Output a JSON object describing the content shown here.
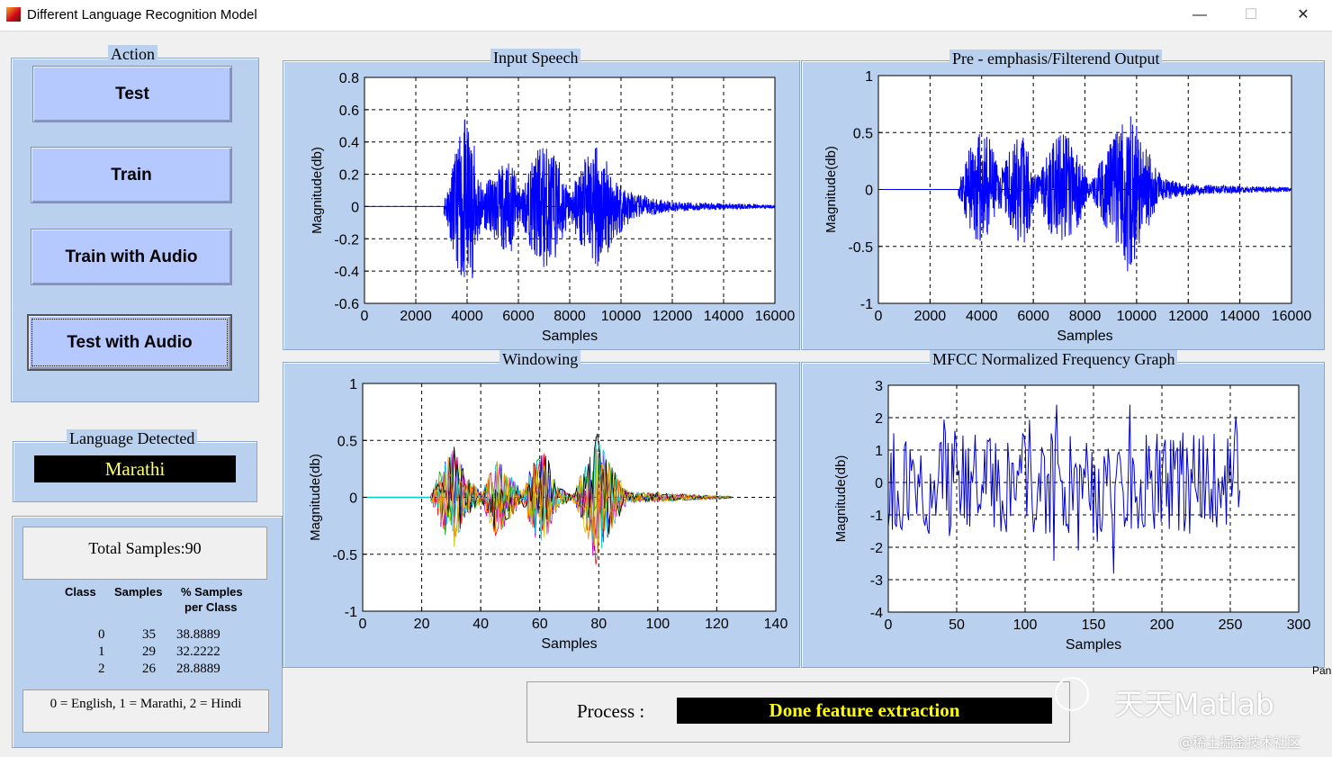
{
  "window": {
    "title": "Different Language Recognition Model",
    "minimize": "—",
    "maximize": "☐",
    "close": "✕"
  },
  "action_panel": {
    "title": "Action",
    "buttons": [
      "Test",
      "Train",
      "Train with Audio",
      "Test with Audio"
    ]
  },
  "language_panel": {
    "title": "Language Detected",
    "value": "Marathi"
  },
  "stats_panel": {
    "total": "Total Samples:90",
    "headers": [
      "Class",
      "Samples",
      "% Samples",
      "per Class"
    ],
    "rows": [
      [
        "0",
        "35",
        "38.8889"
      ],
      [
        "1",
        "29",
        "32.2222"
      ],
      [
        "2",
        "26",
        "28.8889"
      ]
    ],
    "legend": "0 = English,  1 = Marathi,  2 = Hindi"
  },
  "process": {
    "label": "Process :",
    "status": "Done feature extraction"
  },
  "overflow_text": "Pan",
  "watermark": {
    "name": "天天Matlab",
    "site": "@稀土掘金技术社区"
  },
  "colors": {
    "panel_bg": "#b9d1ef",
    "button_bg": "#b6c9ff",
    "signal": "#0000ff",
    "status_text": "#ffff66"
  },
  "chart_data": [
    {
      "type": "line",
      "title": "Input Speech",
      "xlabel": "Samples",
      "ylabel": "Magnitude(db)",
      "xlim": [
        0,
        16000
      ],
      "ylim": [
        -0.6,
        0.8
      ],
      "xticks": [
        0,
        2000,
        4000,
        6000,
        8000,
        10000,
        12000,
        14000,
        16000
      ],
      "yticks": [
        -0.6,
        -0.4,
        -0.2,
        0,
        0.2,
        0.4,
        0.6,
        0.8
      ],
      "grid": true,
      "series_color": "#0000ff",
      "signal_start": 3100,
      "signal_end": 16000,
      "envelope": [
        {
          "x": 3100,
          "amp": 0.05
        },
        {
          "x": 3500,
          "amp": 0.3
        },
        {
          "x": 3900,
          "amp": 0.55
        },
        {
          "x": 4200,
          "amp": 0.45
        },
        {
          "x": 4600,
          "amp": 0.12
        },
        {
          "x": 5300,
          "amp": 0.25
        },
        {
          "x": 5700,
          "amp": 0.3
        },
        {
          "x": 6100,
          "amp": 0.1
        },
        {
          "x": 6700,
          "amp": 0.35
        },
        {
          "x": 7000,
          "amp": 0.4
        },
        {
          "x": 7600,
          "amp": 0.3
        },
        {
          "x": 8000,
          "amp": 0.08
        },
        {
          "x": 8500,
          "amp": 0.28
        },
        {
          "x": 9100,
          "amp": 0.4
        },
        {
          "x": 9800,
          "amp": 0.2
        },
        {
          "x": 10500,
          "amp": 0.08
        },
        {
          "x": 12000,
          "amp": 0.03
        },
        {
          "x": 16000,
          "amp": 0.01
        }
      ]
    },
    {
      "type": "line",
      "title": "Pre - emphasis/Filterend Output",
      "xlabel": "Samples",
      "ylabel": "Magnitude(db)",
      "xlim": [
        0,
        16000
      ],
      "ylim": [
        -1,
        1
      ],
      "xticks": [
        0,
        2000,
        4000,
        6000,
        8000,
        10000,
        12000,
        14000,
        16000
      ],
      "yticks": [
        -1,
        -0.5,
        0,
        0.5,
        1
      ],
      "grid": true,
      "series_color": "#0000ff",
      "signal_start": 3100,
      "signal_end": 16000,
      "envelope": [
        {
          "x": 3100,
          "amp": 0.05
        },
        {
          "x": 3500,
          "amp": 0.35
        },
        {
          "x": 3900,
          "amp": 0.5
        },
        {
          "x": 4300,
          "amp": 0.45
        },
        {
          "x": 4700,
          "amp": 0.15
        },
        {
          "x": 5300,
          "amp": 0.45
        },
        {
          "x": 5700,
          "amp": 0.5
        },
        {
          "x": 6100,
          "amp": 0.1
        },
        {
          "x": 6800,
          "amp": 0.45
        },
        {
          "x": 7300,
          "amp": 0.5
        },
        {
          "x": 7800,
          "amp": 0.3
        },
        {
          "x": 8200,
          "amp": 0.05
        },
        {
          "x": 9000,
          "amp": 0.45
        },
        {
          "x": 9700,
          "amp": 0.75
        },
        {
          "x": 10300,
          "amp": 0.4
        },
        {
          "x": 11000,
          "amp": 0.1
        },
        {
          "x": 12500,
          "amp": 0.04
        },
        {
          "x": 16000,
          "amp": 0.02
        }
      ]
    },
    {
      "type": "line",
      "title": "Windowing",
      "xlabel": "Samples",
      "ylabel": "Magnitude(db)",
      "xlim": [
        0,
        140
      ],
      "ylim": [
        -1,
        1
      ],
      "xticks": [
        0,
        20,
        40,
        60,
        80,
        100,
        120,
        140
      ],
      "yticks": [
        -1,
        -0.5,
        0,
        0.5,
        1
      ],
      "grid": true,
      "signal_start": 23,
      "signal_end": 125,
      "series_colors": [
        "#0000ff",
        "#ff0000",
        "#00aa00",
        "#cc00cc",
        "#00cccc",
        "#cccc00",
        "#000000",
        "#ff8800"
      ],
      "envelope": [
        {
          "x": 23,
          "amp": 0.02
        },
        {
          "x": 27,
          "amp": 0.3
        },
        {
          "x": 31,
          "amp": 0.45
        },
        {
          "x": 35,
          "amp": 0.2
        },
        {
          "x": 40,
          "amp": 0.05
        },
        {
          "x": 45,
          "amp": 0.35
        },
        {
          "x": 50,
          "amp": 0.2
        },
        {
          "x": 54,
          "amp": 0.05
        },
        {
          "x": 58,
          "amp": 0.35
        },
        {
          "x": 62,
          "amp": 0.4
        },
        {
          "x": 66,
          "amp": 0.1
        },
        {
          "x": 71,
          "amp": 0.02
        },
        {
          "x": 76,
          "amp": 0.35
        },
        {
          "x": 79,
          "amp": 0.6
        },
        {
          "x": 84,
          "amp": 0.3
        },
        {
          "x": 90,
          "amp": 0.05
        },
        {
          "x": 125,
          "amp": 0.01
        }
      ]
    },
    {
      "type": "line",
      "title": "MFCC Normalized Frequency Graph",
      "xlabel": "Samples",
      "ylabel": "Magnitude(db)",
      "xlim": [
        0,
        300
      ],
      "ylim": [
        -4,
        3
      ],
      "xticks": [
        0,
        50,
        100,
        150,
        200,
        250,
        300
      ],
      "yticks": [
        -4,
        -3,
        -2,
        -1,
        0,
        1,
        2,
        3
      ],
      "grid": true,
      "series_color": "#0000cc",
      "n_points": 260
    }
  ]
}
